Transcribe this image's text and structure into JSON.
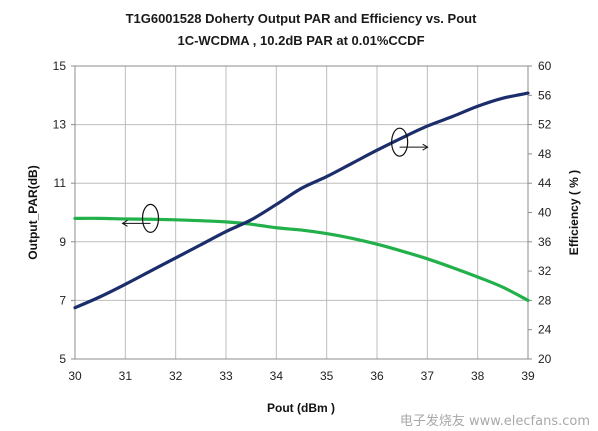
{
  "chart_data": {
    "type": "line",
    "title": [
      "T1G6001528 Doherty Output  PAR and Efficiency vs. Pout",
      "1C-WCDMA , 10.2dB PAR at 0.01%CCDF"
    ],
    "xlabel": "Pout (dBm )",
    "ylabel_left": "Output_PAR(dB)",
    "ylabel_right": "Efficiency ( % )",
    "xlim": [
      30,
      39
    ],
    "ylim_left": [
      5,
      15
    ],
    "ylim_right": [
      20,
      60
    ],
    "x_ticks": [
      "30",
      "31",
      "32",
      "33",
      "34",
      "35",
      "36",
      "37",
      "38",
      "39"
    ],
    "y_left_ticks": [
      "15",
      "13",
      "11",
      "9",
      "7",
      "5"
    ],
    "y_right_ticks": [
      "60",
      "56",
      "52",
      "48",
      "44",
      "40",
      "36",
      "32",
      "28",
      "24",
      "20"
    ],
    "grid": true,
    "legend": "none",
    "series": [
      {
        "axis": "left",
        "color": "#22b04b",
        "x": [
          30,
          30.5,
          31,
          31.5,
          32,
          32.5,
          33,
          33.5,
          34,
          34.5,
          35,
          35.5,
          36,
          36.5,
          37,
          37.5,
          38,
          38.5,
          39
        ],
        "values": [
          9.8,
          9.8,
          9.78,
          9.77,
          9.75,
          9.72,
          9.68,
          9.6,
          9.48,
          9.4,
          9.28,
          9.12,
          8.92,
          8.68,
          8.42,
          8.12,
          7.8,
          7.45,
          7.0
        ]
      },
      {
        "axis": "right",
        "color": "#1b2d6b",
        "x": [
          30,
          30.5,
          31,
          31.5,
          32,
          32.5,
          33,
          33.5,
          34,
          34.5,
          35,
          35.5,
          36,
          36.5,
          37,
          37.5,
          38,
          38.5,
          39
        ],
        "values": [
          27,
          28.5,
          30.2,
          32,
          33.8,
          35.6,
          37.4,
          39,
          41.1,
          43.3,
          44.9,
          46.7,
          48.5,
          50.2,
          51.8,
          53.1,
          54.5,
          55.6,
          56.3
        ]
      }
    ],
    "annotations": [
      {
        "label": "PAR marker ellipse",
        "x": 31.5,
        "y": 9.8,
        "axis": "left",
        "arrow": "left"
      },
      {
        "label": "Efficiency marker ellipse",
        "x": 36.45,
        "y": 49.6,
        "axis": "right",
        "arrow": "right"
      }
    ]
  },
  "watermark": "电子发烧友 www.elecfans.com"
}
